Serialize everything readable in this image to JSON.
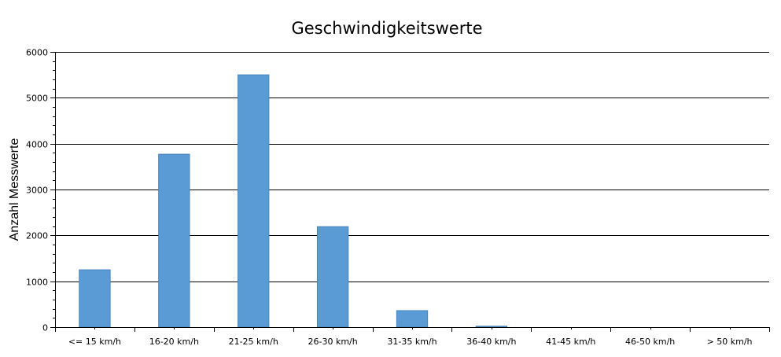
{
  "chart_data": {
    "type": "bar",
    "title": "Geschwindigkeitswerte",
    "xlabel": "",
    "ylabel": "Anzahl Messwerte",
    "categories": [
      "<= 15 km/h",
      "16-20 km/h",
      "21-25 km/h",
      "26-30 km/h",
      "31-35 km/h",
      "36-40 km/h",
      "41-45 km/h",
      "46-50 km/h",
      "> 50 km/h"
    ],
    "values": [
      1250,
      3770,
      5500,
      2190,
      360,
      20,
      0,
      0,
      0
    ],
    "ylim": [
      0,
      6000
    ],
    "yticks": [
      0,
      1000,
      2000,
      3000,
      4000,
      5000,
      6000
    ],
    "grid": true,
    "legend": "none",
    "colors": {
      "bar": "#5b9bd5",
      "bar_edge": "#4a86bd",
      "grid": "#000000",
      "axis": "#000000"
    }
  }
}
